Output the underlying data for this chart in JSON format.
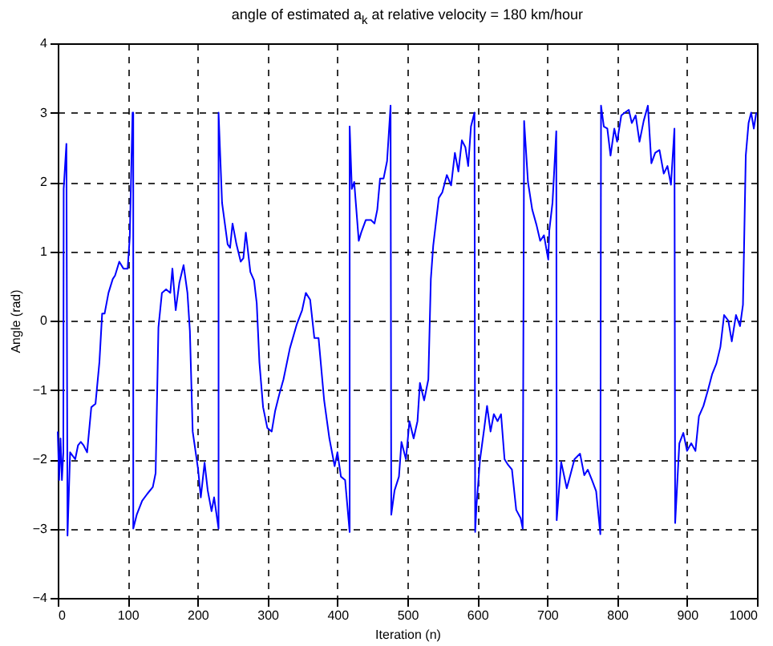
{
  "chart_data": {
    "type": "line",
    "title": "angle of  estimated a$_{k}$  at relative velocity = 180  km/hour",
    "xlabel": "Iteration (n)",
    "ylabel": "Angle (rad)",
    "xlim": [
      0,
      1000
    ],
    "xticks": [
      0,
      100,
      200,
      300,
      400,
      500,
      600,
      700,
      800,
      900,
      1000
    ],
    "ylim": [
      -4,
      4
    ],
    "yticks": [
      -4,
      -3,
      -2,
      -1,
      0,
      1,
      2,
      3,
      4
    ],
    "grid": true,
    "series": [
      {
        "color": "#0000ff",
        "x": [
          0,
          2,
          4,
          6,
          8,
          8.5,
          12.4,
          14,
          17.7,
          25,
          29,
          33,
          37,
          42,
          48,
          54,
          59.6,
          63.5,
          67,
          72.6,
          78.7,
          82,
          88,
          94,
          100,
          103,
          107,
          108,
          108,
          113,
          120.7,
          128,
          136,
          140,
          144,
          149,
          155,
          161,
          164,
          168.7,
          174,
          180,
          185.5,
          189,
          193,
          200.8,
          204.6,
          210,
          214.5,
          220,
          223.6,
          230,
          230,
          235,
          243,
          246.5,
          250,
          255.6,
          261.7,
          265.5,
          269,
          275.5,
          280.8,
          284.6,
          288.4,
          293.7,
          299.8,
          306,
          311,
          316.7,
          322.8,
          332,
          342,
          349.5,
          354.8,
          361,
          367,
          373,
          381,
          388.5,
          396,
          400,
          405,
          411,
          417.5,
          417.5,
          420.6,
          424,
          430.5,
          434,
          440.5,
          448,
          453,
          457,
          461,
          466,
          471,
          476,
          477,
          481.7,
          488,
          491.6,
          498,
          503,
          509,
          514.5,
          518,
          524,
          530,
          533.6,
          537,
          545,
          550,
          556.5,
          562.6,
          568,
          573,
          578,
          583,
          587,
          591,
          596,
          597,
          599,
          604,
          610,
          614,
          619,
          623.7,
          629,
          634,
          639,
          644,
          649.6,
          655.7,
          662,
          665,
          667,
          672.5,
          678.6,
          684.7,
          690,
          695.4,
          701.5,
          703,
          707.6,
          713,
          713.6,
          720,
          728,
          733,
          739,
          747,
          753,
          758,
          764,
          770,
          776,
          777,
          781,
          786,
          790.6,
          796,
          800,
          806,
          811,
          816.7,
          821,
          826.5,
          832,
          838,
          844,
          849,
          854.5,
          860.6,
          866.7,
          872,
          877,
          882,
          883,
          889,
          894.7,
          900,
          906,
          912,
          917,
          923.5,
          930,
          936,
          942,
          947.7,
          953,
          959,
          964,
          970,
          975.8,
          980,
          984,
          988,
          991.7,
          995.5,
          999
        ],
        "values": [
          -1.6,
          -2.3,
          -1.7,
          -2.3,
          -1.9,
          1.9,
          2.55,
          -3.1,
          -1.9,
          -2.0,
          -1.8,
          -1.75,
          -1.8,
          -1.9,
          -1.25,
          -1.2,
          -0.6,
          0.1,
          0.1,
          0.4,
          0.6,
          0.65,
          0.85,
          0.75,
          0.75,
          1.2,
          3.0,
          3.0,
          -3.0,
          -2.8,
          -2.6,
          -2.5,
          -2.4,
          -2.2,
          -0.1,
          0.4,
          0.45,
          0.4,
          0.75,
          0.15,
          0.55,
          0.8,
          0.4,
          -0.15,
          -1.6,
          -2.15,
          -2.55,
          -2.05,
          -2.45,
          -2.75,
          -2.55,
          -3.0,
          3.0,
          1.7,
          1.1,
          1.05,
          1.4,
          1.1,
          0.85,
          0.9,
          1.27,
          0.7,
          0.58,
          0.25,
          -0.6,
          -1.25,
          -1.55,
          -1.6,
          -1.3,
          -1.07,
          -0.85,
          -0.4,
          -0.05,
          0.15,
          0.4,
          0.3,
          -0.25,
          -0.25,
          -1.15,
          -1.7,
          -2.1,
          -1.9,
          -2.25,
          -2.3,
          -3.05,
          2.8,
          1.9,
          2.0,
          1.15,
          1.27,
          1.45,
          1.45,
          1.4,
          1.6,
          2.05,
          2.05,
          2.3,
          3.1,
          -2.8,
          -2.45,
          -2.25,
          -1.75,
          -2.0,
          -1.45,
          -1.7,
          -1.45,
          -0.9,
          -1.15,
          -0.85,
          0.6,
          1.08,
          1.77,
          1.85,
          2.1,
          1.95,
          2.42,
          2.15,
          2.6,
          2.5,
          2.23,
          2.8,
          3.0,
          -3.05,
          -2.65,
          -2.0,
          -1.55,
          -1.23,
          -1.6,
          -1.35,
          -1.45,
          -1.35,
          -2.0,
          -2.08,
          -2.15,
          -2.73,
          -2.85,
          -3.0,
          2.88,
          2.0,
          1.6,
          1.38,
          1.15,
          1.23,
          0.88,
          1.3,
          1.7,
          2.73,
          -2.88,
          -2.04,
          -2.42,
          -2.23,
          -2.0,
          -1.92,
          -2.23,
          -2.15,
          -2.3,
          -2.46,
          -3.08,
          3.1,
          2.8,
          2.77,
          2.38,
          2.77,
          2.58,
          2.96,
          3.0,
          3.04,
          2.85,
          2.96,
          2.58,
          2.88,
          3.1,
          2.27,
          2.42,
          2.46,
          2.12,
          2.23,
          1.96,
          2.77,
          -2.92,
          -1.77,
          -1.62,
          -1.88,
          -1.77,
          -1.88,
          -1.38,
          -1.23,
          -1.0,
          -0.77,
          -0.62,
          -0.38,
          0.08,
          0.0,
          -0.3,
          0.08,
          -0.08,
          0.23,
          2.38,
          2.85,
          3.0,
          2.77,
          3.0
        ]
      }
    ]
  }
}
